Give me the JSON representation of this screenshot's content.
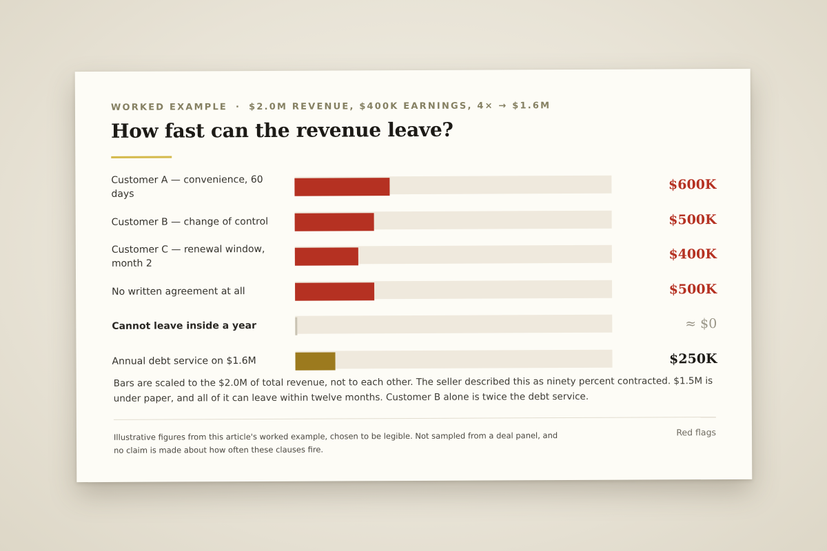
{
  "header": {
    "eyebrow_left": "WORKED EXAMPLE",
    "eyebrow_sep": "·",
    "eyebrow_right": "$2.0M REVENUE, $400K EARNINGS, 4× → $1.6M",
    "title": "How fast can the revenue leave?"
  },
  "chart_data": {
    "type": "bar",
    "orientation": "horizontal",
    "title": "How fast can the revenue leave?",
    "scale_max": 2000000,
    "categories": [
      "Customer A — convenience, 60 days",
      "Customer B — change of control",
      "Customer C — renewal window, month 2",
      "No written agreement at all",
      "Cannot leave inside a year",
      "Annual debt service on $1.6M"
    ],
    "values": [
      600000,
      500000,
      400000,
      500000,
      0,
      250000
    ],
    "value_labels": [
      "$600K",
      "$500K",
      "$400K",
      "$500K",
      "≈ $0",
      "$250K"
    ],
    "bar_colors": [
      "#b53122",
      "#b53122",
      "#b53122",
      "#b53122",
      "#c9c3b3",
      "#9c7a1e"
    ],
    "label_colors": [
      "#b53122",
      "#b53122",
      "#b53122",
      "#b53122",
      "#9a9688",
      "#1c1a16"
    ],
    "bold_labels": [
      false,
      false,
      false,
      false,
      true,
      false
    ],
    "track_color": "#efe9dd",
    "grid": false
  },
  "note": "Bars are scaled to the $2.0M of total revenue, not to each other. The seller described this as ninety percent contracted. $1.5M is under paper, and all of it can leave within twelve months. Customer B alone is twice the debt service.",
  "footer": {
    "disclaimer": "Illustrative figures from this article's worked example, chosen to be legible. Not sampled from a deal panel, and no claim is made about how often these clauses fire.",
    "link": "Red flags"
  }
}
